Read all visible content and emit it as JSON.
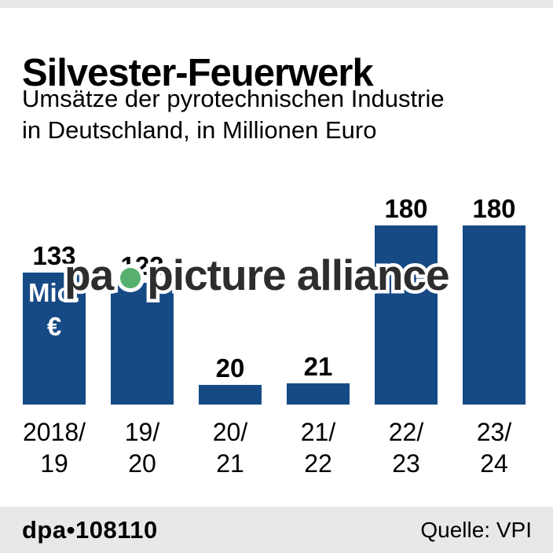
{
  "header": {
    "title": "Silvester-Feuerwerk",
    "subtitle_line1": "Umsätze der pyrotechnischen Industrie",
    "subtitle_line2": "in Deutschland, in Millionen Euro"
  },
  "chart_data": {
    "type": "bar",
    "title": "Silvester-Feuerwerk",
    "subtitle": "Umsätze der pyrotechnischen Industrie in Deutschland, in Millionen Euro",
    "categories": [
      "2018/19",
      "19/20",
      "20/21",
      "21/22",
      "22/23",
      "23/24"
    ],
    "category_lines": [
      [
        "2018/",
        "19"
      ],
      [
        "19/",
        "20"
      ],
      [
        "20/",
        "21"
      ],
      [
        "21/",
        "22"
      ],
      [
        "22/",
        "23"
      ],
      [
        "23/",
        "24"
      ]
    ],
    "values": [
      133,
      122,
      20,
      21,
      180,
      180
    ],
    "unit_lines": [
      "Mio.",
      "€"
    ],
    "ylim": [
      0,
      180
    ],
    "grid": false,
    "legend": "none",
    "bar_color": "#164a85",
    "label_color": "#000000"
  },
  "watermark": {
    "part1": "pa",
    "part2": "picture alliance",
    "dot_color": "#58b06f"
  },
  "footer": {
    "credit": "dpa•108110",
    "source": "Quelle: VPI"
  }
}
